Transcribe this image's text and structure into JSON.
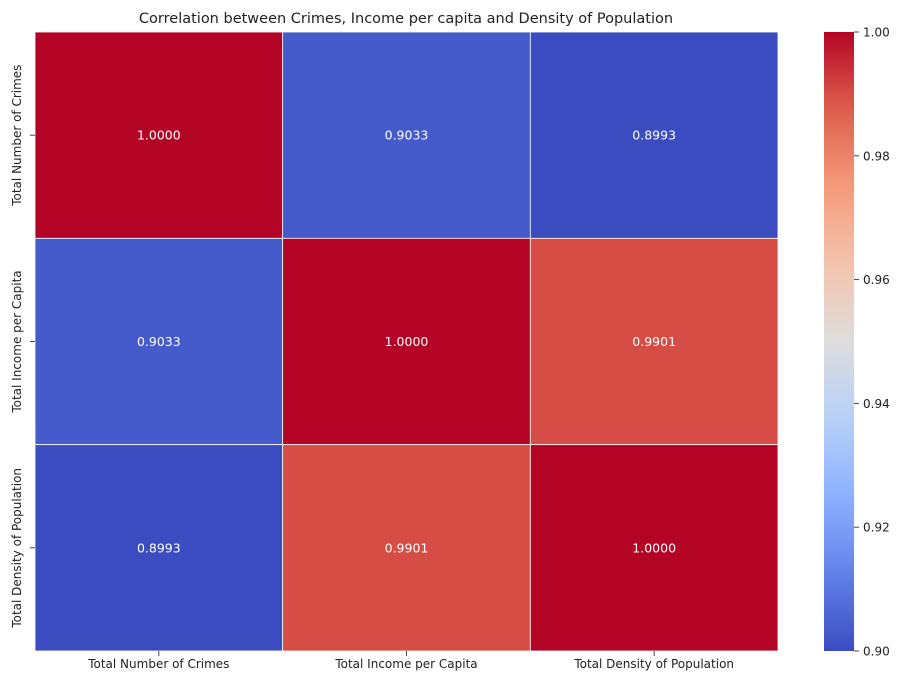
{
  "chart_data": {
    "type": "heatmap",
    "title": "Correlation between Crimes, Income per capita and Density of Population",
    "xlabel": "",
    "ylabel": "",
    "x_categories": [
      "Total Number of Crimes",
      "Total Income per Capita",
      "Total Density of Population"
    ],
    "y_categories": [
      "Total Number of Crimes",
      "Total Income per Capita",
      "Total Density of Population"
    ],
    "values": [
      [
        1.0,
        0.9033,
        0.8993
      ],
      [
        0.9033,
        1.0,
        0.9901
      ],
      [
        0.8993,
        0.9901,
        1.0
      ]
    ],
    "cell_labels": [
      [
        "1.0000",
        "0.9033",
        "0.8993"
      ],
      [
        "0.9033",
        "1.0000",
        "0.9901"
      ],
      [
        "0.8993",
        "0.9901",
        "1.0000"
      ]
    ],
    "colormap": "coolwarm",
    "colorbar": {
      "vmin": 0.9,
      "vmax": 1.0,
      "ticks": [
        0.9,
        0.92,
        0.94,
        0.96,
        0.98,
        1.0
      ],
      "tick_labels": [
        "0.90",
        "0.92",
        "0.94",
        "0.96",
        "0.98",
        "1.00"
      ],
      "placement": "right"
    },
    "annotation_color": "#ffffff",
    "cell_border_color": "#ffffff"
  }
}
